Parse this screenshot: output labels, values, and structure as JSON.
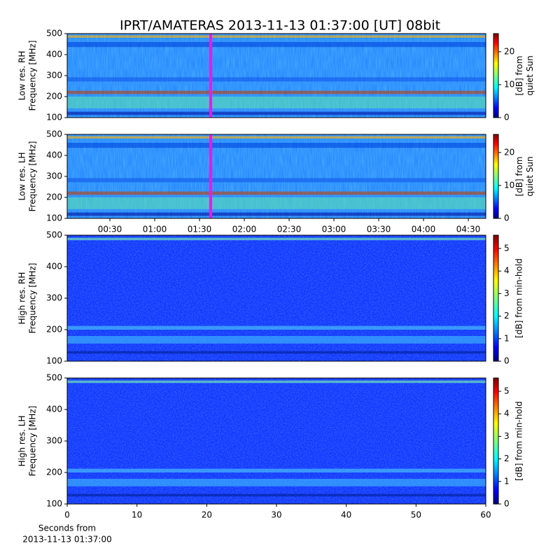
{
  "chart_data": [
    {
      "type": "spectrogram",
      "title": "IPRT/AMATERAS 2013-11-13 01:37:00 [UT]   08bit",
      "ylabel": [
        "Low res. RH",
        "Frequency [MHz]"
      ],
      "ylim": [
        100,
        500
      ],
      "yticks": [
        100,
        200,
        300,
        400,
        500
      ],
      "xlim": [
        1.4,
        281.7
      ],
      "highlight_x": 97.5,
      "highlight_color": "#e020e0",
      "colorbar": {
        "label": [
          "[dB] from",
          "quiet Sun"
        ],
        "lim": [
          0,
          25.5
        ],
        "ticks": [
          0,
          10,
          20
        ]
      }
    },
    {
      "type": "spectrogram",
      "ylabel": [
        "Low res. LH",
        "Frequency [MHz]"
      ],
      "ylim": [
        100,
        500
      ],
      "yticks": [
        100,
        200,
        300,
        400,
        500
      ],
      "xlim": [
        1.4,
        281.7
      ],
      "highlight_x": 97.5,
      "highlight_color": "#e020e0",
      "xticks": [
        {
          "value": 30,
          "label": "00:30"
        },
        {
          "value": 60,
          "label": "01:00"
        },
        {
          "value": 90,
          "label": "01:30"
        },
        {
          "value": 120,
          "label": "02:00"
        },
        {
          "value": 150,
          "label": "02:30"
        },
        {
          "value": 180,
          "label": "03:00"
        },
        {
          "value": 210,
          "label": "03:30"
        },
        {
          "value": 240,
          "label": "04:00"
        },
        {
          "value": 270,
          "label": "04:30"
        }
      ],
      "colorbar": {
        "label": [
          "[dB] from",
          "quiet Sun"
        ],
        "lim": [
          0,
          25.5
        ],
        "ticks": [
          0,
          10,
          20
        ]
      }
    },
    {
      "type": "spectrogram",
      "ylabel": [
        "High res. RH",
        "Frequency [MHz]"
      ],
      "ylim": [
        100,
        500
      ],
      "yticks": [
        100,
        200,
        300,
        400,
        500
      ],
      "xlim": [
        0,
        60
      ],
      "colorbar": {
        "label": [
          "[dB] from min-hold"
        ],
        "lim": [
          0,
          5.59
        ],
        "ticks": [
          0,
          1,
          2,
          3,
          4,
          5
        ]
      }
    },
    {
      "type": "spectrogram",
      "ylabel": [
        "High res. LH",
        "Frequency [MHz]"
      ],
      "ylim": [
        100,
        500
      ],
      "yticks": [
        100,
        200,
        300,
        400,
        500
      ],
      "xlim": [
        0,
        60
      ],
      "xticks": [
        0,
        10,
        20,
        30,
        40,
        50,
        60
      ],
      "xlabel": [
        "Seconds from",
        "2013-11-13 01:37:00"
      ],
      "colorbar": {
        "label": [
          "[dB] from min-hold"
        ],
        "lim": [
          0,
          5.59
        ],
        "ticks": [
          0,
          1,
          2,
          3,
          4,
          5
        ]
      }
    }
  ]
}
